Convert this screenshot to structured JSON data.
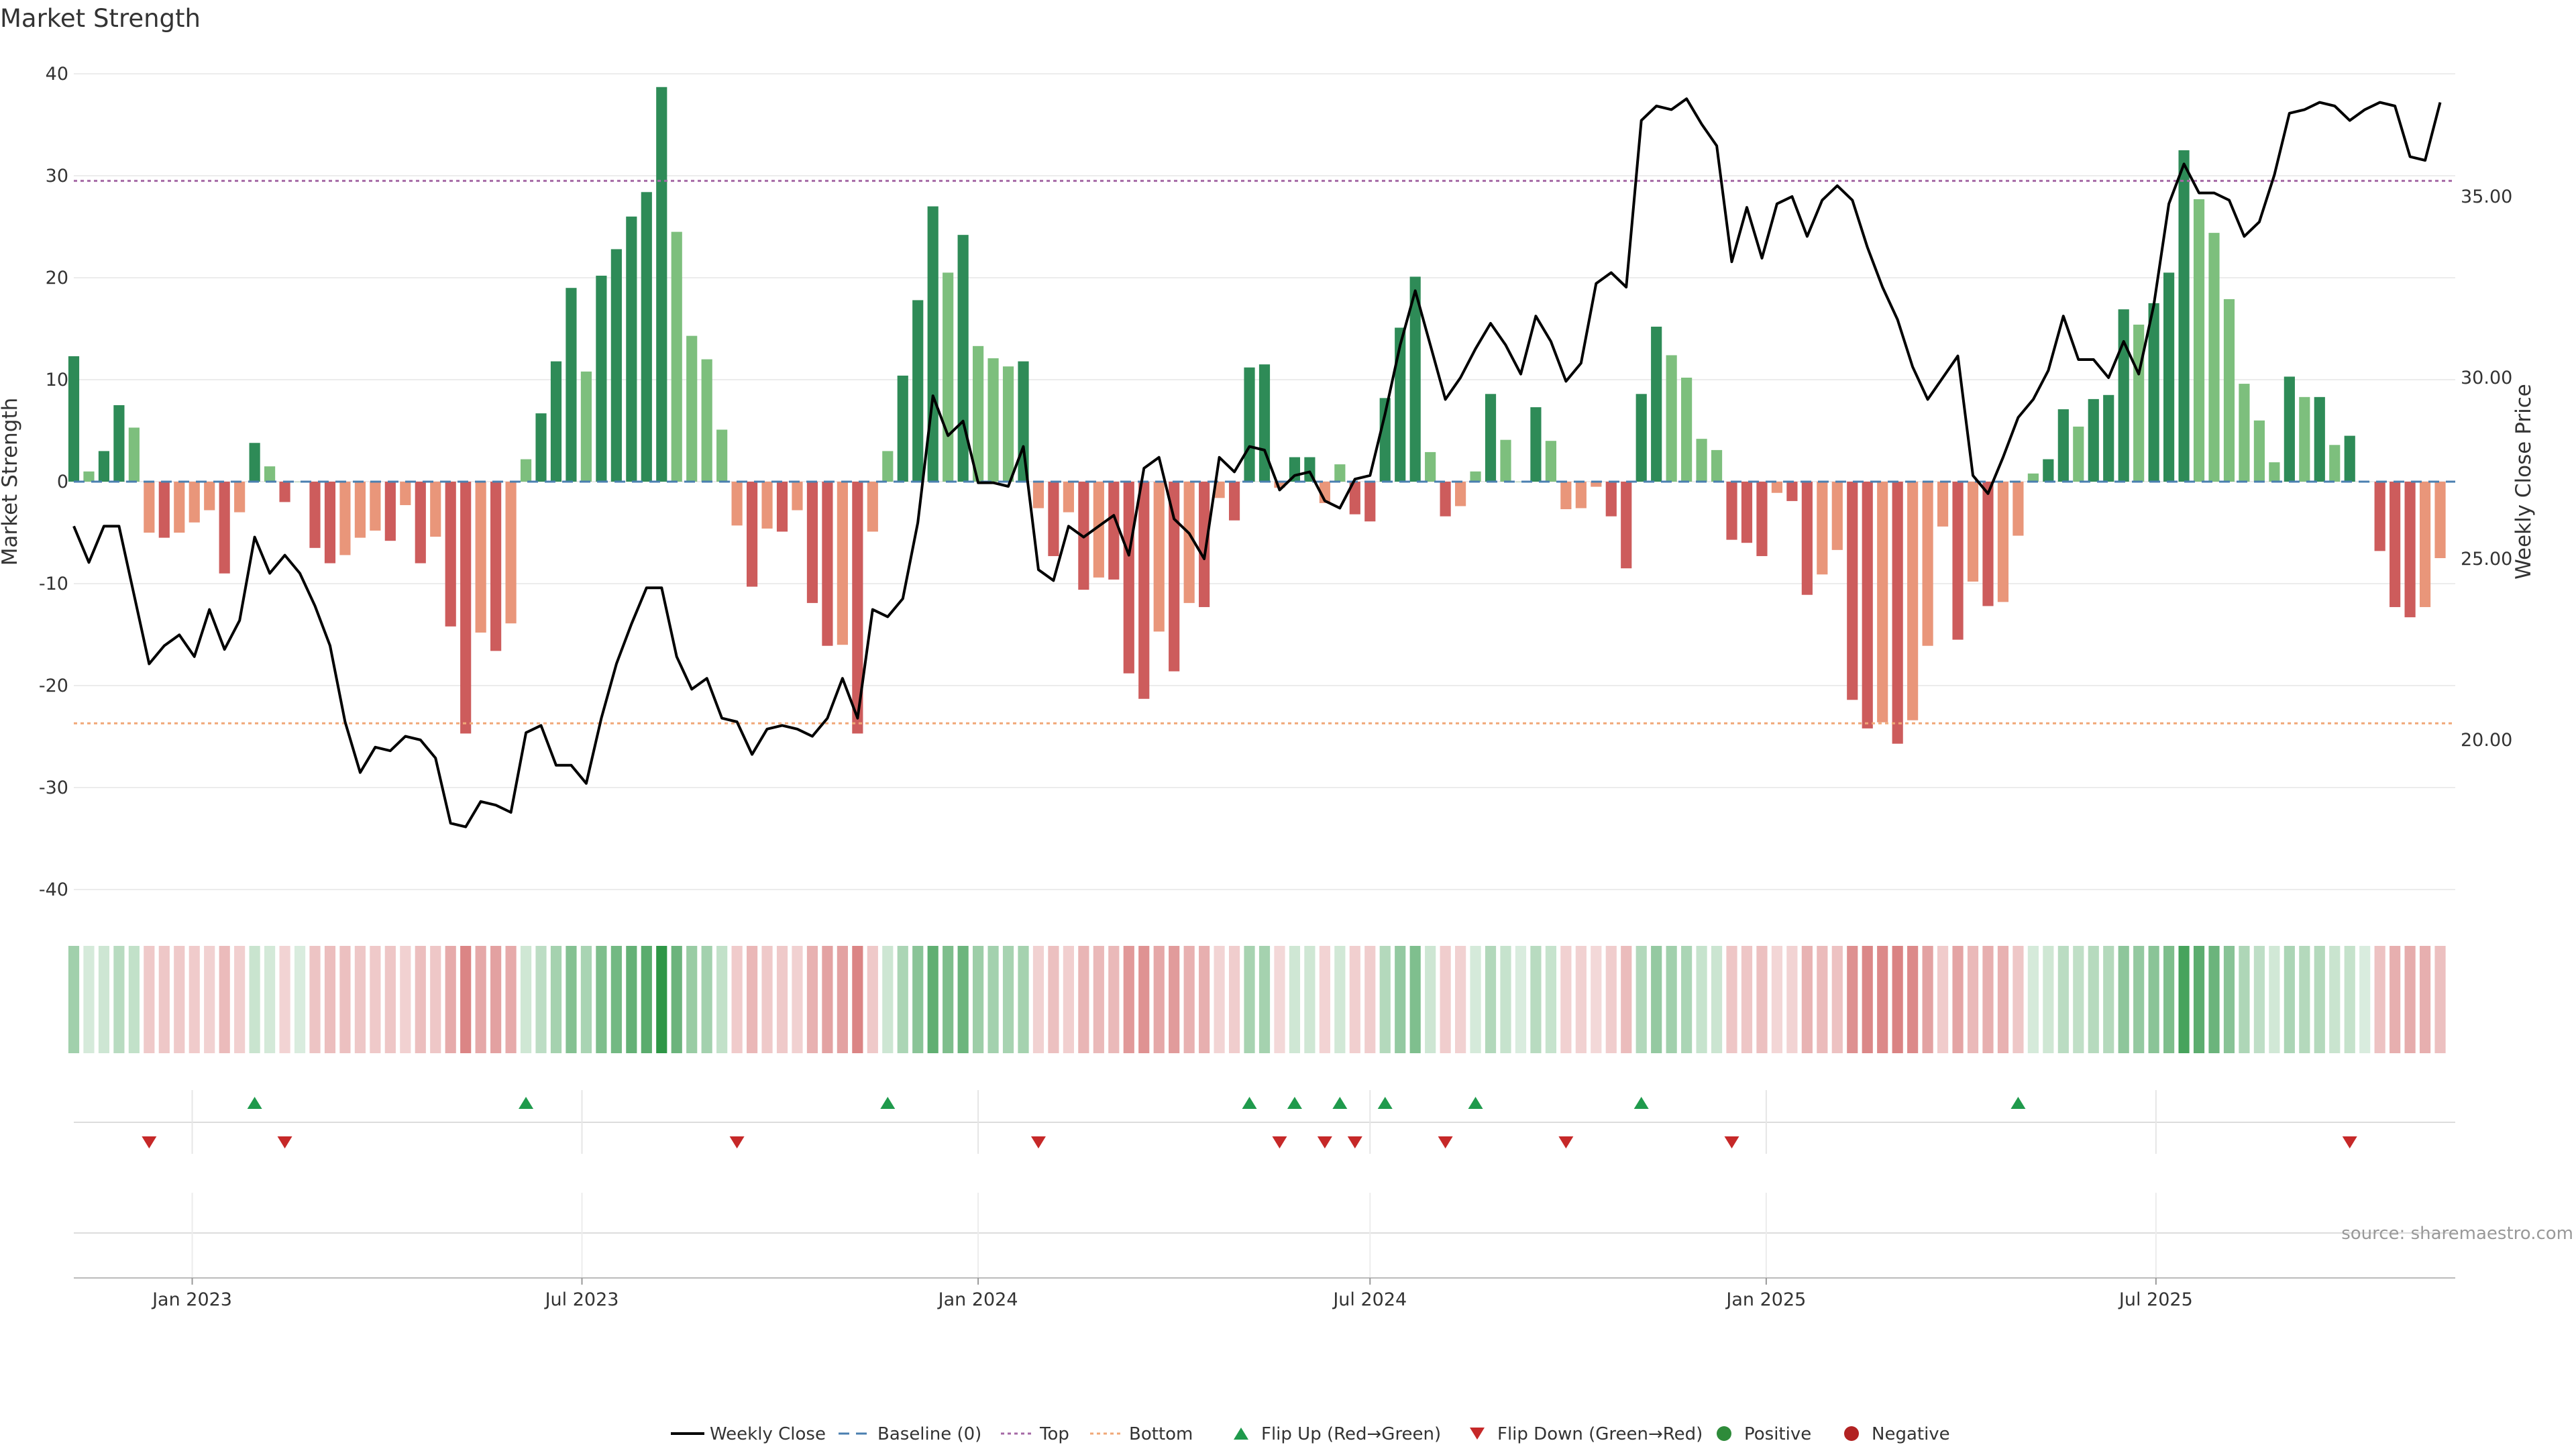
{
  "chart_data": {
    "type": "bar",
    "title": "Market Strength",
    "ylabel": "Market Strength",
    "y2label": "Weekly Close Price",
    "ylim": [
      -42,
      40
    ],
    "y2lim": [
      17.5,
      38
    ],
    "yticks": [
      40,
      30,
      20,
      10,
      0,
      -10,
      -20,
      -30,
      -40
    ],
    "y2ticks": [
      35,
      30,
      25,
      20
    ],
    "x_range": [
      "2022-11-07",
      "2025-11-17"
    ],
    "x_ticks": [
      "2023-01-01",
      "2023-07-01",
      "2024-01-01",
      "2024-07-01",
      "2025-01-01",
      "2025-07-01"
    ],
    "x_tick_labels": [
      "Jan 2023",
      "Jul 2023",
      "Jan 2024",
      "Jul 2024",
      "Jan 2025",
      "Jul 2025"
    ],
    "start_date": "2022-11-07",
    "interval_days": 7,
    "series": [
      {
        "name": "Market Strength",
        "values": [
          12.3,
          1,
          3,
          7.5,
          5.3,
          -5,
          -5.5,
          -5,
          -4,
          -2.8,
          -9,
          -3,
          3.8,
          1.5,
          -2,
          0,
          -6.5,
          -8,
          -7.2,
          -5.5,
          -4.8,
          -5.8,
          -2.3,
          -8,
          -5.4,
          -14.2,
          -24.7,
          -14.8,
          -16.6,
          -13.9,
          2.2,
          6.7,
          11.8,
          19,
          10.8,
          20.2,
          22.8,
          26,
          28.4,
          38.7,
          24.5,
          14.3,
          12,
          5.1,
          -4.3,
          -10.3,
          -4.6,
          -4.9,
          -2.8,
          -11.9,
          -16.1,
          -16,
          -24.7,
          -4.9,
          3,
          10.4,
          17.8,
          27,
          20.5,
          24.2,
          13.3,
          12.1,
          11.3,
          11.8,
          -2.6,
          -7.3,
          -3,
          -10.6,
          -9.4,
          -9.6,
          -18.8,
          -21.3,
          -14.7,
          -18.6,
          -11.9,
          -12.3,
          -1.6,
          -3.8,
          11.2,
          11.5,
          -0.6,
          2.4,
          2.4,
          -2.1,
          1.7,
          -3.2,
          -3.9,
          8.2,
          15.1,
          20.1,
          2.9,
          -3.4,
          -2.4,
          1,
          8.6,
          4.1,
          0,
          7.3,
          4,
          -2.7,
          -2.6,
          -0.5,
          -3.4,
          -8.5,
          8.6,
          15.2,
          12.4,
          10.2,
          4.2,
          3.1,
          -5.7,
          -6,
          -7.3,
          -1.1,
          -1.9,
          -11.1,
          -9.1,
          -6.7,
          -21.4,
          -24.2,
          -23.6,
          -25.7,
          -23.4,
          -16.1,
          -4.4,
          -15.5,
          -9.8,
          -12.2,
          -11.8,
          -5.3,
          0.8,
          2.2,
          7.1,
          5.4,
          8.1,
          8.5,
          16.9,
          15.4,
          17.5,
          20.5,
          32.5,
          27.7,
          24.4,
          17.9,
          9.6,
          6,
          1.9,
          10.3,
          8.3,
          8.3,
          3.6,
          4.5,
          0,
          -6.8,
          -12.3,
          -13.3,
          -12.3,
          -7.5
        ]
      },
      {
        "name": "Weekly Close",
        "values": [
          25.9,
          24.9,
          25.9,
          25.9,
          24.0,
          22.1,
          22.6,
          22.9,
          22.3,
          23.6,
          22.5,
          23.3,
          25.6,
          24.6,
          25.1,
          24.6,
          23.7,
          22.6,
          20.5,
          19.1,
          19.8,
          19.7,
          20.1,
          20.0,
          19.5,
          17.7,
          17.6,
          18.3,
          18.2,
          18.0,
          20.2,
          20.4,
          19.3,
          19.3,
          18.8,
          20.6,
          22.1,
          23.2,
          24.2,
          24.2,
          22.3,
          21.4,
          21.7,
          20.6,
          20.5,
          19.6,
          20.3,
          20.4,
          20.3,
          20.1,
          20.6,
          21.7,
          20.6,
          23.6,
          23.4,
          23.9,
          26.0,
          29.5,
          28.4,
          28.8,
          27.1,
          27.1,
          27.0,
          28.1,
          24.7,
          24.4,
          25.9,
          25.6,
          25.9,
          26.2,
          25.1,
          27.5,
          27.8,
          26.1,
          25.7,
          25.0,
          27.8,
          27.4,
          28.1,
          28.0,
          26.9,
          27.3,
          27.4,
          26.6,
          26.4,
          27.2,
          27.3,
          29.0,
          30.9,
          32.4,
          30.9,
          29.4,
          30.0,
          30.8,
          31.5,
          30.9,
          30.1,
          31.7,
          31.0,
          29.9,
          30.4,
          32.6,
          32.9,
          32.5,
          37.1,
          37.5,
          37.4,
          37.7,
          37.0,
          36.4,
          33.2,
          34.7,
          33.3,
          34.8,
          35.0,
          33.9,
          34.9,
          35.3,
          34.9,
          33.6,
          32.5,
          31.6,
          30.3,
          29.4,
          30.0,
          30.6,
          27.3,
          26.8,
          27.8,
          28.9,
          29.4,
          30.2,
          31.7,
          30.5,
          30.5,
          30.0,
          31.0,
          30.1,
          32.0,
          34.8,
          35.9,
          35.1,
          35.1,
          34.9,
          33.9,
          34.3,
          35.6,
          37.3,
          37.4,
          37.6,
          37.5,
          37.1,
          37.4,
          37.6,
          37.5,
          36.1,
          36.0,
          37.6
        ]
      }
    ],
    "top_line": 29.5,
    "bottom_line": -23.7,
    "flip_up_weeks": [
      12,
      30,
      54,
      78,
      81,
      84,
      87,
      93,
      104,
      129
    ],
    "flip_down_weeks": [
      5,
      14,
      44,
      64,
      80,
      83,
      85,
      91,
      99,
      110,
      151
    ],
    "legend": {
      "position": "bottom",
      "entries": [
        {
          "label": "Weekly Close",
          "style": "line",
          "color": "#000000"
        },
        {
          "label": "Baseline (0)",
          "style": "dashed",
          "color": "#4a7fb0"
        },
        {
          "label": "Top",
          "style": "dotted",
          "color": "#a569a5"
        },
        {
          "label": "Bottom",
          "style": "dotted",
          "color": "#f0a878"
        },
        {
          "label": "Flip Up (Red→Green)",
          "style": "triangle-up",
          "color": "#1f9a4c"
        },
        {
          "label": "Flip Down (Green→Red)",
          "style": "triangle-down",
          "color": "#c62828"
        },
        {
          "label": "Positive",
          "style": "dot",
          "color": "#2e8b3a"
        },
        {
          "label": "Negative",
          "style": "dot",
          "color": "#b22222"
        }
      ]
    },
    "colors": {
      "positive_strong": "#2e8b57",
      "positive_weak": "#7dbf7d",
      "negative_strong": "#cd5c5c",
      "negative_weak": "#e9967a",
      "close_line": "#000000",
      "baseline": "#4a7fb0",
      "top": "#a569a5",
      "bottom": "#f0a878",
      "flip_up": "#1f9a4c",
      "flip_down": "#c62828"
    },
    "grid": true
  },
  "source": "source: sharemaestro.com"
}
